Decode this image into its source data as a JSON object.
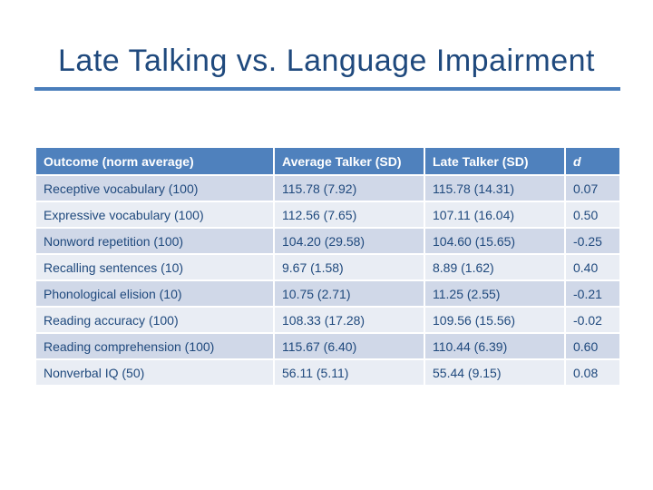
{
  "slide": {
    "title": "Late Talking vs. Language Impairment",
    "colors": {
      "title_text": "#1F497D",
      "accent_rule": "#4A7EBB",
      "background": "#FFFFFF"
    }
  },
  "table": {
    "columns": [
      {
        "label": "Outcome (norm average)",
        "italic": false
      },
      {
        "label": "Average Talker (SD)",
        "italic": false
      },
      {
        "label": "Late Talker (SD)",
        "italic": false
      },
      {
        "label": "d",
        "italic": true
      }
    ],
    "rows": [
      [
        "Receptive vocabulary (100)",
        "115.78 (7.92)",
        "115.78 (14.31)",
        "0.07"
      ],
      [
        "Expressive vocabulary (100)",
        "112.56 (7.65)",
        "107.11 (16.04)",
        "0.50"
      ],
      [
        "Nonword repetition (100)",
        "104.20 (29.58)",
        "104.60 (15.65)",
        "-0.25"
      ],
      [
        "Recalling sentences (10)",
        "9.67 (1.58)",
        "8.89 (1.62)",
        "0.40"
      ],
      [
        "Phonological elision (10)",
        "10.75 (2.71)",
        "11.25 (2.55)",
        "-0.21"
      ],
      [
        "Reading accuracy (100)",
        "108.33 (17.28)",
        "109.56 (15.56)",
        "-0.02"
      ],
      [
        "Reading comprehension (100)",
        "115.67 (6.40)",
        "110.44 (6.39)",
        "0.60"
      ],
      [
        "Nonverbal IQ (50)",
        "56.11 (5.11)",
        "55.44 (9.15)",
        "0.08"
      ]
    ],
    "colors": {
      "header_bg": "#4F81BD",
      "header_text": "#FFFFFF",
      "band_dark": "#D0D8E8",
      "band_light": "#E9EDF4",
      "body_text": "#1F497D"
    }
  }
}
